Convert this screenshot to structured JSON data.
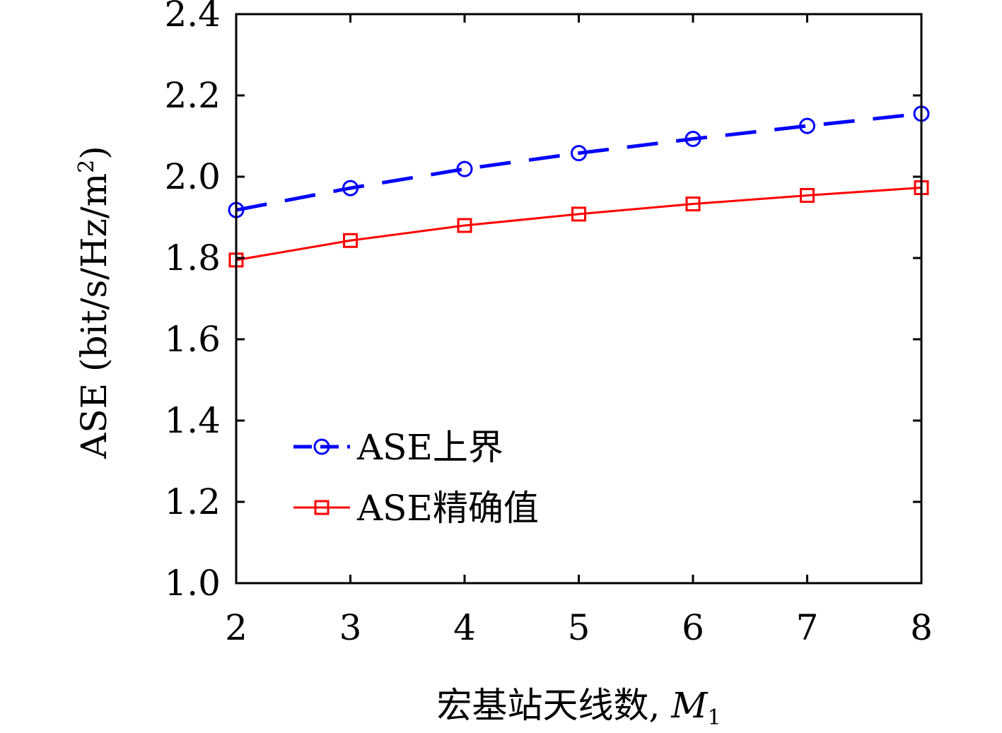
{
  "chart_data": {
    "type": "line",
    "title": "",
    "xlabel": "宏基站天线数, ",
    "xlabel_var": "M",
    "xlabel_sub": "1",
    "ylabel": "ASE (bit/s/Hz/m",
    "ylabel_sup": "2",
    "ylabel_close": ")",
    "xlim": [
      2,
      8
    ],
    "ylim": [
      1.0,
      2.4
    ],
    "x": [
      2,
      3,
      4,
      5,
      6,
      7,
      8
    ],
    "xticks": [
      "2",
      "3",
      "4",
      "5",
      "6",
      "7",
      "8"
    ],
    "yticks": [
      "1.0",
      "1.2",
      "1.4",
      "1.6",
      "1.8",
      "2.0",
      "2.2",
      "2.4"
    ],
    "grid": false,
    "legend_position": "bottom-left",
    "series": [
      {
        "name": "ASE上界",
        "values": [
          1.918,
          1.972,
          2.019,
          2.058,
          2.093,
          2.125,
          2.155
        ],
        "color": "#0000ff",
        "style": "dashed",
        "marker": "circle"
      },
      {
        "name": "ASE精确值",
        "values": [
          1.795,
          1.843,
          1.88,
          1.908,
          1.933,
          1.954,
          1.973
        ],
        "color": "#ff0000",
        "style": "solid",
        "marker": "square"
      }
    ]
  }
}
